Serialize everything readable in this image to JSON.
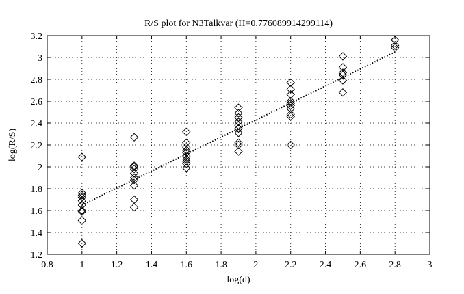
{
  "chart_data": {
    "type": "scatter",
    "title": "R/S plot for N3Talkvar (H=0.776089914299114)",
    "xlabel": "log(d)",
    "ylabel": "log(R/S)",
    "xlim": [
      0.8,
      3.0
    ],
    "ylim": [
      1.2,
      3.2
    ],
    "x_ticks": [
      "0.8",
      "1",
      "1.2",
      "1.4",
      "1.6",
      "1.8",
      "2",
      "2.2",
      "2.4",
      "2.6",
      "2.8",
      "3"
    ],
    "y_ticks": [
      "1.2",
      "1.4",
      "1.6",
      "1.8",
      "2",
      "2.2",
      "2.4",
      "2.6",
      "2.8",
      "3",
      "3.2"
    ],
    "grid": true,
    "marker": "diamond",
    "series": [
      {
        "points": [
          [
            1.0,
            2.09
          ],
          [
            1.0,
            1.76
          ],
          [
            1.0,
            1.74
          ],
          [
            1.0,
            1.72
          ],
          [
            1.0,
            1.69
          ],
          [
            1.0,
            1.65
          ],
          [
            1.0,
            1.6
          ],
          [
            1.0,
            1.59
          ],
          [
            1.0,
            1.51
          ],
          [
            1.0,
            1.3
          ],
          [
            1.3,
            2.27
          ],
          [
            1.3,
            2.01
          ],
          [
            1.3,
            2.0
          ],
          [
            1.3,
            1.98
          ],
          [
            1.3,
            1.94
          ],
          [
            1.3,
            1.9
          ],
          [
            1.3,
            1.88
          ],
          [
            1.3,
            1.83
          ],
          [
            1.3,
            1.7
          ],
          [
            1.3,
            1.63
          ],
          [
            1.6,
            2.32
          ],
          [
            1.6,
            2.22
          ],
          [
            1.6,
            2.18
          ],
          [
            1.6,
            2.15
          ],
          [
            1.6,
            2.13
          ],
          [
            1.6,
            2.1
          ],
          [
            1.6,
            2.07
          ],
          [
            1.6,
            2.05
          ],
          [
            1.6,
            2.03
          ],
          [
            1.6,
            1.99
          ],
          [
            1.9,
            2.54
          ],
          [
            1.9,
            2.49
          ],
          [
            1.9,
            2.45
          ],
          [
            1.9,
            2.41
          ],
          [
            1.9,
            2.38
          ],
          [
            1.9,
            2.35
          ],
          [
            1.9,
            2.31
          ],
          [
            1.9,
            2.22
          ],
          [
            1.9,
            2.2
          ],
          [
            1.9,
            2.14
          ],
          [
            2.2,
            2.77
          ],
          [
            2.2,
            2.71
          ],
          [
            2.2,
            2.66
          ],
          [
            2.2,
            2.6
          ],
          [
            2.2,
            2.58
          ],
          [
            2.2,
            2.56
          ],
          [
            2.2,
            2.53
          ],
          [
            2.2,
            2.48
          ],
          [
            2.2,
            2.46
          ],
          [
            2.2,
            2.2
          ],
          [
            2.5,
            3.01
          ],
          [
            2.5,
            2.91
          ],
          [
            2.5,
            2.86
          ],
          [
            2.5,
            2.84
          ],
          [
            2.5,
            2.79
          ],
          [
            2.5,
            2.68
          ],
          [
            2.8,
            3.16
          ],
          [
            2.8,
            3.11
          ],
          [
            2.8,
            3.09
          ]
        ]
      }
    ],
    "fit_line": {
      "x": [
        1.0,
        2.8
      ],
      "y": [
        1.65,
        3.05
      ]
    }
  }
}
